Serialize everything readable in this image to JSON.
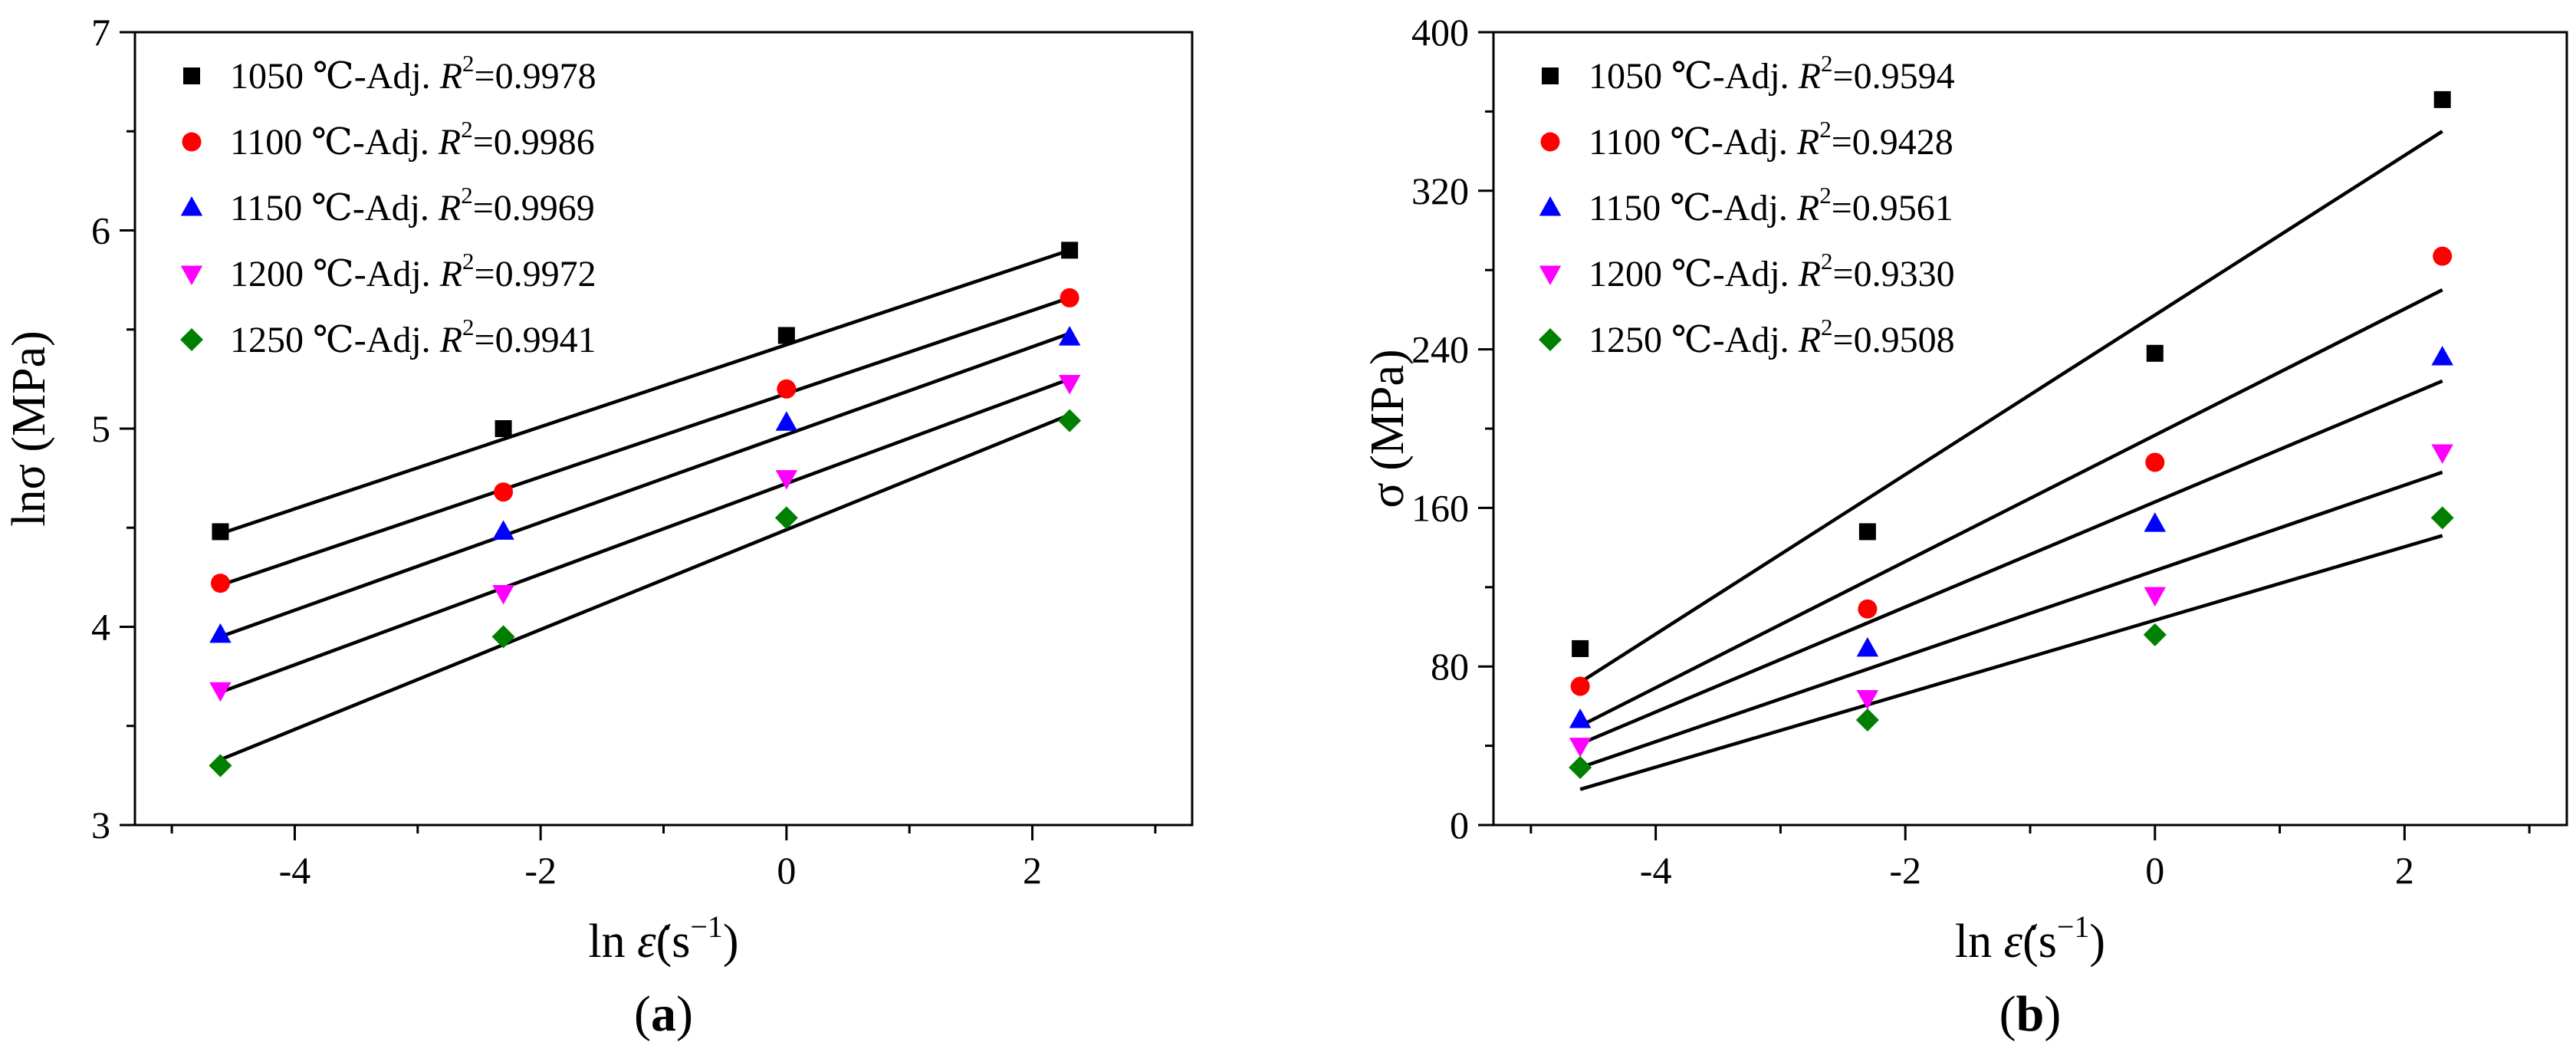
{
  "chart_data": [
    {
      "type": "scatter",
      "panel_label": {
        "open": "(",
        "letter": "a",
        "close": ")"
      },
      "ylabel": "lnσ (MPa)",
      "xlabel": {
        "prefix": "ln ",
        "symbol": "ε̇",
        "unit": "(s",
        "exp": "−1",
        "close": ")"
      },
      "xlim": [
        -5.3,
        3.3
      ],
      "ylim": [
        3,
        7
      ],
      "xticks": [
        -4,
        -2,
        0,
        2
      ],
      "xtick_labels": [
        "-4",
        "-2",
        "0",
        "2"
      ],
      "yticks": [
        3,
        4,
        5,
        6,
        7
      ],
      "ytick_labels": [
        "3",
        "4",
        "5",
        "6",
        "7"
      ],
      "x": [
        -4.605,
        -2.303,
        0,
        2.303
      ],
      "series": [
        {
          "name": "1050",
          "label_prefix": "1050 ℃-Adj. ",
          "r": "R",
          "r_exp": "2",
          "value": "=0.9978",
          "marker": "square",
          "color": "#000000",
          "values": [
            4.48,
            5.0,
            5.47,
            5.9
          ]
        },
        {
          "name": "1100",
          "label_prefix": "1100 ℃-Adj. ",
          "r": "R",
          "r_exp": "2",
          "value": "=0.9986",
          "marker": "circle",
          "color": "#ff0000",
          "values": [
            4.22,
            4.68,
            5.2,
            5.66
          ]
        },
        {
          "name": "1150",
          "label_prefix": "1150 ℃-Adj. ",
          "r": "R",
          "r_exp": "2",
          "value": "=0.9969",
          "marker": "triangle-up",
          "color": "#0000ff",
          "values": [
            3.96,
            4.48,
            5.03,
            5.46
          ]
        },
        {
          "name": "1200",
          "label_prefix": "1200 ℃-Adj. ",
          "r": "R",
          "r_exp": "2",
          "value": "=0.9972",
          "marker": "triangle-down",
          "color": "#ff00ff",
          "values": [
            3.68,
            4.17,
            4.75,
            5.23
          ]
        },
        {
          "name": "1250",
          "label_prefix": "1250 ℃-Adj. ",
          "r": "R",
          "r_exp": "2",
          "value": "=0.9941",
          "marker": "diamond",
          "color": "#008000",
          "values": [
            3.3,
            3.95,
            4.55,
            5.04
          ]
        }
      ],
      "fit_lines": [
        {
          "x": [
            -4.605,
            2.303
          ],
          "y": [
            4.47,
            5.9
          ]
        },
        {
          "x": [
            -4.605,
            2.303
          ],
          "y": [
            4.21,
            5.66
          ]
        },
        {
          "x": [
            -4.605,
            2.303
          ],
          "y": [
            3.95,
            5.48
          ]
        },
        {
          "x": [
            -4.605,
            2.303
          ],
          "y": [
            3.67,
            5.25
          ]
        },
        {
          "x": [
            -4.605,
            2.303
          ],
          "y": [
            3.33,
            5.07
          ]
        }
      ]
    },
    {
      "type": "scatter",
      "panel_label": {
        "open": "(",
        "letter": "b",
        "close": ")"
      },
      "ylabel": "σ (MPa)",
      "xlabel": {
        "prefix": "ln ",
        "symbol": "ε̇",
        "unit": "(s",
        "exp": "−1",
        "close": ")"
      },
      "xlim": [
        -5.3,
        3.3
      ],
      "ylim": [
        0,
        400
      ],
      "xticks": [
        -4,
        -2,
        0,
        2
      ],
      "xtick_labels": [
        "-4",
        "-2",
        "0",
        "2"
      ],
      "yticks": [
        0,
        80,
        160,
        240,
        320,
        400
      ],
      "ytick_labels": [
        "0",
        "80",
        "160",
        "240",
        "320",
        "400"
      ],
      "x": [
        -4.605,
        -2.303,
        0,
        2.303
      ],
      "series": [
        {
          "name": "1050",
          "label_prefix": "1050 ℃-Adj. ",
          "r": "R",
          "r_exp": "2",
          "value": "=0.9594",
          "marker": "square",
          "color": "#000000",
          "values": [
            89,
            148,
            238,
            366
          ]
        },
        {
          "name": "1100",
          "label_prefix": "1100 ℃-Adj. ",
          "r": "R",
          "r_exp": "2",
          "value": "=0.9428",
          "marker": "circle",
          "color": "#ff0000",
          "values": [
            70,
            109,
            183,
            287
          ]
        },
        {
          "name": "1150",
          "label_prefix": "1150 ℃-Adj. ",
          "r": "R",
          "r_exp": "2",
          "value": "=0.9561",
          "marker": "triangle-up",
          "color": "#0000ff",
          "values": [
            53,
            89,
            152,
            236
          ]
        },
        {
          "name": "1200",
          "label_prefix": "1200 ℃-Adj. ",
          "r": "R",
          "r_exp": "2",
          "value": "=0.9330",
          "marker": "triangle-down",
          "color": "#ff00ff",
          "values": [
            40,
            64,
            116,
            188
          ]
        },
        {
          "name": "1250",
          "label_prefix": "1250 ℃-Adj. ",
          "r": "R",
          "r_exp": "2",
          "value": "=0.9508",
          "marker": "diamond",
          "color": "#008000",
          "values": [
            29,
            53,
            96,
            155
          ]
        }
      ],
      "fit_lines": [
        {
          "x": [
            -4.605,
            2.303
          ],
          "y": [
            72,
            350
          ]
        },
        {
          "x": [
            -4.605,
            2.303
          ],
          "y": [
            50,
            270
          ]
        },
        {
          "x": [
            -4.605,
            2.303
          ],
          "y": [
            41,
            224
          ]
        },
        {
          "x": [
            -4.605,
            2.303
          ],
          "y": [
            29,
            178
          ]
        },
        {
          "x": [
            -4.605,
            2.303
          ],
          "y": [
            18,
            146
          ]
        }
      ]
    }
  ]
}
